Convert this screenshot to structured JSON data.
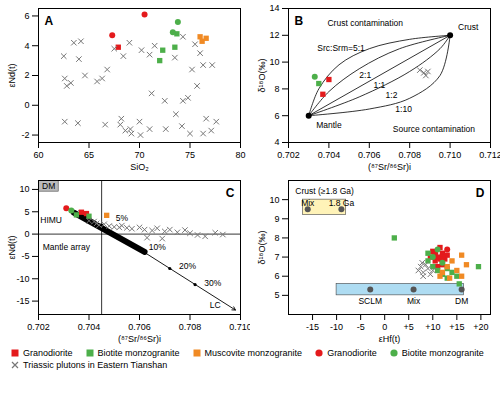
{
  "chart_data": [
    {
      "type": "scatter",
      "title": "A",
      "x_label": "SiO₂",
      "y_label": "εNd(t)",
      "xlim": [
        60,
        80
      ],
      "ylim": [
        -2.5,
        6.5
      ],
      "xticks": [
        60,
        65,
        70,
        75,
        80
      ],
      "yticks": [
        -2,
        0,
        2,
        4,
        6
      ],
      "series": [
        {
          "name": "Granodiorite",
          "color": "#e41a1c",
          "marker": "square",
          "x": [
            67.9
          ],
          "y": [
            3.9
          ]
        },
        {
          "name": "Biotite monzogranite",
          "color": "#4daf4a",
          "marker": "square",
          "x": [
            72.0,
            72.3,
            73.5,
            73.7
          ],
          "y": [
            3.0,
            3.7,
            3.9,
            4.8
          ]
        },
        {
          "name": "Muscovite monzogranite",
          "color": "#f08a24",
          "marker": "square",
          "x": [
            76.0,
            76.2,
            76.6
          ],
          "y": [
            4.6,
            4.3,
            4.5
          ]
        },
        {
          "name": "Granodiorite",
          "color": "#e41a1c",
          "marker": "circle",
          "x": [
            67.3,
            70.5
          ],
          "y": [
            4.7,
            6.1
          ]
        },
        {
          "name": "Biotite monzogranite",
          "color": "#4daf4a",
          "marker": "circle",
          "x": [
            73.3,
            73.8
          ],
          "y": [
            4.9,
            5.6
          ]
        },
        {
          "name": "Triassic plutons in Eastern Tianshan",
          "color": "#777777",
          "marker": "cross",
          "x": [
            62.5,
            63.5,
            64.2,
            64.0,
            62.6,
            63.2,
            62.8,
            64.6,
            65.8,
            66.3,
            67.5,
            68.4,
            69.0,
            70.2,
            71.0,
            71.5,
            74.3,
            75.5,
            76.0,
            75.2,
            76.3,
            77.2,
            75.7,
            74.3,
            74.8,
            71.2,
            72.5,
            66.8,
            73.5,
            62.6,
            63.9,
            66.6,
            68.1,
            68.6,
            69.1,
            69.2,
            70.1,
            71.0,
            72.6,
            74.2,
            75.0,
            76.3,
            77.1,
            77.6,
            76.6,
            73.6,
            70.0,
            68.2
          ],
          "y": [
            3.3,
            4.2,
            4.3,
            3.1,
            1.8,
            1.5,
            1.3,
            2.0,
            1.6,
            1.8,
            3.8,
            3.3,
            4.2,
            3.7,
            3.4,
            4.0,
            4.6,
            4.1,
            3.5,
            2.4,
            2.7,
            2.7,
            1.3,
            0.3,
            0.5,
            0.8,
            0.3,
            2.4,
            3.2,
            -1.1,
            -1.2,
            -1.3,
            -1.3,
            -1.7,
            -1.6,
            -1.9,
            -2.0,
            -1.6,
            -1.6,
            -1.4,
            -1.9,
            -1.9,
            -1.7,
            -1.1,
            -0.9,
            -0.6,
            -1.1,
            -0.9
          ]
        }
      ]
    },
    {
      "type": "scatter",
      "title": "B",
      "x_label": "(⁸⁷Sr/⁸⁶Sr)i",
      "y_label": "δ¹⁸O(‰)",
      "xlim": [
        0.702,
        0.712
      ],
      "ylim": [
        4,
        14
      ],
      "xticks": [
        0.702,
        0.704,
        0.706,
        0.708,
        {
          "value": 0.71,
          "label": "0.710"
        },
        0.712
      ],
      "yticks": [
        4,
        6,
        8,
        10,
        12,
        14
      ],
      "series": [
        {
          "type": "line",
          "color": "#000000",
          "line_style": "solid",
          "x": [
            0.703,
            0.7035,
            0.7045,
            0.706,
            0.708,
            0.71
          ],
          "y": [
            6,
            8,
            9.8,
            11,
            11.7,
            12
          ]
        },
        {
          "type": "line",
          "color": "#000000",
          "line_style": "solid",
          "x": [
            0.703,
            0.704,
            0.7055,
            0.7075,
            0.71
          ],
          "y": [
            6,
            7.8,
            9.5,
            11,
            12
          ]
        },
        {
          "type": "line",
          "color": "#000000",
          "line_style": "solid",
          "x": [
            0.703,
            0.71
          ],
          "y": [
            6,
            12
          ]
        },
        {
          "type": "line",
          "color": "#000000",
          "line_style": "solid",
          "x": [
            0.703,
            0.7055,
            0.708,
            0.7095,
            0.71
          ],
          "y": [
            6,
            7.4,
            9.3,
            11,
            12
          ]
        },
        {
          "type": "line",
          "color": "#000000",
          "line_style": "solid",
          "x": [
            0.703,
            0.706,
            0.708,
            0.7095,
            0.71
          ],
          "y": [
            6,
            6.5,
            7.3,
            9,
            12
          ]
        },
        {
          "color": "#000000",
          "marker": "circle",
          "x": [
            0.703,
            0.71
          ],
          "y": [
            6,
            12
          ]
        },
        {
          "name": "Granodiorite",
          "color": "#e41a1c",
          "marker": "square",
          "x": [
            0.7037,
            0.704
          ],
          "y": [
            7.6,
            8.7
          ]
        },
        {
          "name": "Biotite monzogranite",
          "color": "#4daf4a",
          "marker": "square",
          "x": [
            0.7035
          ],
          "y": [
            8.4
          ]
        },
        {
          "name": "Biotite monzogranite",
          "color": "#4daf4a",
          "marker": "circle",
          "x": [
            0.7033
          ],
          "y": [
            8.9
          ]
        },
        {
          "name": "Triassic plutons in Eastern Tianshan",
          "color": "#777777",
          "marker": "cross",
          "x": [
            0.7085,
            0.7087,
            0.7089,
            0.7088
          ],
          "y": [
            9.4,
            9.2,
            9.3,
            9.0
          ]
        }
      ],
      "annotations": [
        {
          "text": "Crust contamination",
          "x": 0.7058,
          "y": 12.9
        },
        {
          "text": "Source contamination",
          "x": 0.7092,
          "y": 5.0
        },
        {
          "text": "Src:Srm=5:1",
          "x": 0.7046,
          "y": 11.0
        },
        {
          "text": "2:1",
          "x": 0.7058,
          "y": 9.0
        },
        {
          "text": "1:1",
          "x": 0.7065,
          "y": 8.3
        },
        {
          "text": "1:2",
          "x": 0.7071,
          "y": 7.5
        },
        {
          "text": "1:10",
          "x": 0.7077,
          "y": 6.5
        },
        {
          "text": "Mantle",
          "x": 0.704,
          "y": 5.3
        },
        {
          "text": "Crust",
          "x": 0.7109,
          "y": 12.6
        }
      ]
    },
    {
      "type": "scatter",
      "title": "C",
      "x_label": "(⁸⁷Sr/⁸⁶Sr)i",
      "y_label": "εNd(t)",
      "xlim": [
        0.702,
        0.71
      ],
      "ylim": [
        -18,
        12
      ],
      "xticks": [
        0.702,
        0.704,
        0.706,
        0.708,
        {
          "value": 0.71,
          "label": "0.710"
        }
      ],
      "yticks": [
        -15,
        -10,
        -5,
        0,
        5,
        10
      ],
      "regions": [
        {
          "x": [
            0.702,
            0.7028
          ],
          "y": [
            9.5,
            12
          ],
          "color": "#bbbbbb"
        }
      ],
      "series": [
        {
          "type": "line",
          "color": "#000000",
          "line_style": "solid",
          "x": [
            0.7045,
            0.7045
          ],
          "y": [
            -18,
            12
          ]
        },
        {
          "type": "line",
          "color": "#000000",
          "line_style": "solid",
          "x": [
            0.702,
            0.71
          ],
          "y": [
            0,
            0
          ]
        },
        {
          "type": "line",
          "color": "#000000",
          "line_style": "thick",
          "x": [
            0.7034,
            0.7062
          ],
          "y": [
            4.8,
            -4
          ]
        },
        {
          "type": "line",
          "color": "#000000",
          "line_style": "arrow",
          "x": [
            0.7036,
            0.7098
          ],
          "y": [
            5.2,
            -17
          ]
        },
        {
          "color": "#000000",
          "marker": "dot",
          "x": [
            0.7045,
            0.706,
            0.7072,
            0.7082
          ],
          "y": [
            2.0,
            -3.4,
            -7.7,
            -11.3
          ]
        },
        {
          "name": "Granodiorite",
          "color": "#e41a1c",
          "marker": "square",
          "x": [
            0.7037,
            0.7039
          ],
          "y": [
            4.9,
            4.6
          ]
        },
        {
          "name": "Biotite monzogranite",
          "color": "#4daf4a",
          "marker": "square",
          "x": [
            0.7035,
            0.704
          ],
          "y": [
            4.3,
            4.0
          ]
        },
        {
          "name": "Muscovite monzogranite",
          "color": "#f08a24",
          "marker": "square",
          "x": [
            0.7047
          ],
          "y": [
            4.2
          ]
        },
        {
          "name": "Granodiorite",
          "color": "#e41a1c",
          "marker": "circle",
          "x": [
            0.7031
          ],
          "y": [
            5.8
          ]
        },
        {
          "name": "Biotite monzogranite",
          "color": "#4daf4a",
          "marker": "circle",
          "x": [
            0.7033
          ],
          "y": [
            5.3
          ]
        },
        {
          "name": "Triassic plutons in Eastern Tianshan",
          "color": "#777777",
          "marker": "cross",
          "x": [
            0.7043,
            0.7044,
            0.7046,
            0.7048,
            0.705,
            0.7052,
            0.7053,
            0.7055,
            0.7057,
            0.706,
            0.7062,
            0.7065,
            0.7067,
            0.707,
            0.7072,
            0.7075,
            0.7078,
            0.708,
            0.7083,
            0.7086,
            0.709,
            0.7093,
            0.704,
            0.7042,
            0.7063,
            0.7069
          ],
          "y": [
            2.4,
            2.0,
            2.2,
            1.8,
            1.6,
            1.5,
            1.9,
            1.4,
            1.2,
            1.5,
            1.0,
            0.8,
            1.3,
            0.6,
            1.0,
            0.4,
            0.9,
            0.2,
            -0.2,
            -0.5,
            0.3,
            -0.1,
            3.0,
            2.8,
            -0.8,
            -1.0
          ]
        }
      ],
      "annotations": [
        {
          "text": "DM",
          "x": 0.7024,
          "y": 10.7
        },
        {
          "text": "HIMU",
          "x": 0.7025,
          "y": 3.0
        },
        {
          "text": "Mantle array",
          "x": 0.7031,
          "y": -3.0
        },
        {
          "text": "5%",
          "x": 0.7053,
          "y": 3.6
        },
        {
          "text": "10%",
          "x": 0.7067,
          "y": -3.0
        },
        {
          "text": "20%",
          "x": 0.7079,
          "y": -7.3
        },
        {
          "text": "30%",
          "x": 0.7089,
          "y": -10.9
        },
        {
          "text": "LC",
          "x": 0.709,
          "y": -16.0
        }
      ]
    },
    {
      "type": "scatter",
      "title": "D",
      "x_label": "εHf(t)",
      "y_label": "δ¹⁸O(‰)",
      "xlim": [
        -20,
        22
      ],
      "ylim": [
        4,
        11
      ],
      "xticks": [
        -15,
        -10,
        -5,
        0,
        {
          "value": 5,
          "label": "+5"
        },
        {
          "value": 10,
          "label": "+10"
        },
        {
          "value": 15,
          "label": "+15"
        },
        {
          "value": 20,
          "label": "+20"
        }
      ],
      "yticks": [
        5,
        6,
        7,
        8,
        9,
        10
      ],
      "regions": [
        {
          "x": [
            -17,
            -8
          ],
          "y": [
            9.2,
            10.0
          ],
          "color": "#fff3b8"
        },
        {
          "x": [
            -10,
            16.5
          ],
          "y": [
            5.0,
            5.6
          ],
          "color": "#aedcf2"
        }
      ],
      "series": [
        {
          "color": "#555555",
          "marker": "circle",
          "x": [
            -16,
            -9,
            -3,
            6,
            16
          ],
          "y": [
            9.5,
            9.5,
            5.3,
            5.3,
            5.3
          ]
        },
        {
          "name": "Granodiorite",
          "color": "#e41a1c",
          "marker": "square",
          "x": [
            10,
            11,
            12,
            10.5,
            11.5,
            12.5,
            9.5,
            13,
            11,
            12
          ],
          "y": [
            7.3,
            7.0,
            7.2,
            6.8,
            7.5,
            6.9,
            7.0,
            7.1,
            6.5,
            6.6
          ]
        },
        {
          "name": "Biotite monzogranite",
          "color": "#4daf4a",
          "marker": "square",
          "x": [
            2,
            9,
            10,
            11,
            12,
            13,
            14,
            15,
            19.5,
            15.5,
            9,
            13
          ],
          "y": [
            8.0,
            6.8,
            6.5,
            6.3,
            6.1,
            6.4,
            6.2,
            6.0,
            6.5,
            5.6,
            7.2,
            5.9
          ]
        },
        {
          "name": "Muscovite monzogranite",
          "color": "#f08a24",
          "marker": "square",
          "x": [
            12,
            13,
            14,
            15,
            16,
            13.5,
            11.5,
            17,
            16
          ],
          "y": [
            6.2,
            6.5,
            6.8,
            6.3,
            6.0,
            5.9,
            6.0,
            6.6,
            7.1
          ]
        },
        {
          "name": "Granodiorite",
          "color": "#e41a1c",
          "marker": "circle",
          "x": [
            12,
            13,
            11.5,
            10.5
          ],
          "y": [
            7.0,
            7.4,
            6.9,
            7.2
          ]
        },
        {
          "name": "Biotite monzogranite",
          "color": "#4daf4a",
          "marker": "circle",
          "x": [
            10,
            11,
            12
          ],
          "y": [
            7.0,
            7.4,
            6.7
          ]
        },
        {
          "name": "Triassic plutons in Eastern Tianshan",
          "color": "#777777",
          "marker": "cross",
          "x": [
            7,
            7.5,
            8,
            8.5,
            9,
            8,
            9.5,
            7.8,
            10
          ],
          "y": [
            6.3,
            6.5,
            6.2,
            6.6,
            6.4,
            6.0,
            6.1,
            6.7,
            6.3
          ]
        }
      ],
      "annotations": [
        {
          "text": "Crust (≥1.8 Ga)",
          "x": -12.5,
          "y": 10.45
        },
        {
          "text": "Mix",
          "x": -16,
          "y": 9.8
        },
        {
          "text": "1.8 Ga",
          "x": -9,
          "y": 9.8
        },
        {
          "text": "SCLM",
          "x": -3,
          "y": 4.7
        },
        {
          "text": "Mix",
          "x": 6,
          "y": 4.7
        },
        {
          "text": "DM",
          "x": 16,
          "y": 4.7
        }
      ]
    }
  ]
}
